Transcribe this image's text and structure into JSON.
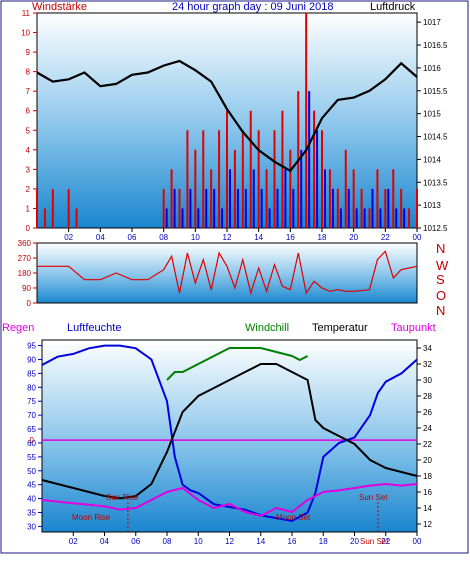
{
  "header": {
    "left_label": "Windstärke",
    "title": "24 hour graph day : 09 Juni 2018",
    "right_label": "Luftdruck"
  },
  "colors": {
    "wind": "#e00000",
    "gust": "#0000e0",
    "pressure": "#000000",
    "winddir": "#e00000",
    "humidity": "#0000e0",
    "windchill": "#008000",
    "temperature": "#000000",
    "dewpoint": "#e000e0",
    "marker": "#c00000",
    "label_red": "#c00000",
    "label_blue": "#0000c0",
    "label_green": "#008000"
  },
  "middle": {
    "direction_labels": [
      "N",
      "W",
      "S",
      "O",
      "N"
    ]
  },
  "bottom_header": {
    "regen": "Regen",
    "luftfeuchte": "Luftfeuchte",
    "windchill": "Windchill",
    "temperatur": "Temperatur",
    "taupunkt": "Taupunkt"
  },
  "events": {
    "sun_rise": "Sun Rise",
    "moon_rise": "Moon Rise",
    "moon_set": "Moon Set",
    "sun_set": "Sun Set",
    "sun_set_short": "Sun Set"
  },
  "chart_data": [
    {
      "type": "line",
      "title": "24 hour graph day : 09 Juni 2018",
      "x_tick_labels": [
        "02",
        "04",
        "06",
        "08",
        "10",
        "12",
        "14",
        "16",
        "18",
        "20",
        "22",
        "00"
      ],
      "xlim_hours": [
        0,
        24
      ],
      "left_axis": {
        "label": "Windstärke",
        "ticks": [
          0,
          1,
          2,
          3,
          4,
          5,
          6,
          7,
          8,
          9,
          10,
          11
        ],
        "ylim": [
          0,
          11
        ]
      },
      "right_axis": {
        "label": "Luftdruck",
        "ticks": [
          1012.5,
          1013,
          1013.5,
          1014,
          1014.5,
          1015,
          1015.5,
          1016,
          1016.5,
          1017
        ],
        "ylim": [
          1012.5,
          1017.2
        ]
      },
      "series": [
        {
          "name": "Luftdruck",
          "axis": "right",
          "x": [
            0,
            1,
            2,
            3,
            4,
            5,
            6,
            7,
            8,
            9,
            10,
            11,
            12,
            13,
            14,
            15,
            16,
            17,
            18,
            19,
            20,
            21,
            22,
            23,
            24
          ],
          "y": [
            1015.9,
            1015.7,
            1015.75,
            1015.9,
            1015.6,
            1015.65,
            1015.85,
            1015.9,
            1016.05,
            1016.15,
            1015.95,
            1015.7,
            1015.1,
            1014.6,
            1014.2,
            1013.95,
            1013.75,
            1014.2,
            1014.9,
            1015.3,
            1015.35,
            1015.5,
            1015.75,
            1016.1,
            1015.8
          ]
        },
        {
          "name": "Wind",
          "axis": "left",
          "x": [
            0,
            0.5,
            1,
            1.5,
            2,
            2.5,
            3,
            7.5,
            8,
            8.5,
            9,
            9.5,
            10,
            10.5,
            11,
            11.5,
            12,
            12.5,
            13,
            13.5,
            14,
            14.5,
            15,
            15.5,
            16,
            16.5,
            17,
            17.5,
            18,
            18.5,
            19,
            19.5,
            20,
            20.5,
            21,
            21.5,
            22,
            22.5,
            23,
            23.5,
            24
          ],
          "y": [
            2,
            1,
            2,
            0,
            2,
            1,
            0,
            0,
            2,
            3,
            2,
            5,
            4,
            5,
            3,
            5,
            6,
            4,
            5,
            6,
            5,
            3,
            5,
            6,
            4,
            7,
            11,
            6,
            5,
            3,
            2,
            4,
            3,
            2,
            1,
            3,
            2,
            3,
            2,
            1,
            2
          ]
        },
        {
          "name": "Böen",
          "axis": "left",
          "x": [
            8,
            8.5,
            9,
            9.5,
            10,
            10.5,
            11,
            11.5,
            12,
            12.5,
            13,
            13.5,
            14,
            14.5,
            15,
            15.5,
            16,
            16.5,
            17,
            17.5,
            18,
            18.5,
            19,
            19.5,
            20,
            20.5,
            21,
            21.5,
            22,
            22.5,
            23
          ],
          "y": [
            1,
            2,
            1,
            2,
            1,
            2,
            2,
            1,
            3,
            2,
            2,
            3,
            2,
            1,
            2,
            3,
            2,
            4,
            7,
            5,
            3,
            2,
            1,
            2,
            1,
            1,
            2,
            1,
            2,
            1,
            1
          ]
        }
      ]
    },
    {
      "type": "line",
      "left_axis": {
        "ticks": [
          0,
          90,
          180,
          270,
          360
        ],
        "ylim": [
          0,
          360
        ]
      },
      "right_labels": [
        "N",
        "W",
        "S",
        "O",
        "N"
      ],
      "series": [
        {
          "name": "Windrichtung",
          "x": [
            0,
            1,
            2,
            3,
            4,
            5,
            6,
            7,
            8,
            8.5,
            9,
            9.5,
            10,
            10.5,
            11,
            11.5,
            12,
            12.5,
            13,
            13.5,
            14,
            14.5,
            15,
            15.5,
            16,
            16.5,
            17,
            17.5,
            18,
            18.5,
            19,
            19.5,
            20,
            21,
            21.5,
            22,
            22.5,
            23,
            23.5,
            24
          ],
          "y": [
            220,
            220,
            220,
            140,
            140,
            180,
            140,
            140,
            200,
            280,
            60,
            300,
            120,
            260,
            80,
            300,
            220,
            90,
            260,
            60,
            210,
            70,
            230,
            100,
            80,
            300,
            60,
            130,
            90,
            70,
            80,
            70,
            70,
            80,
            260,
            310,
            150,
            200,
            210,
            220
          ]
        }
      ]
    },
    {
      "type": "line",
      "left_axis": {
        "ticks": [
          30,
          35,
          40,
          45,
          50,
          55,
          60,
          65,
          70,
          75,
          80,
          85,
          90,
          95
        ],
        "ylim": [
          28,
          97
        ]
      },
      "right_axis": {
        "ticks": [
          12,
          14,
          16,
          18,
          20,
          22,
          24,
          26,
          28,
          30,
          32,
          34
        ],
        "ylim": [
          11,
          35
        ]
      },
      "x_tick_labels": [
        "02",
        "04",
        "06",
        "08",
        "10",
        "12",
        "14",
        "16",
        "18",
        "20",
        "22",
        "00"
      ],
      "series": [
        {
          "name": "Luftfeuchte",
          "axis": "left",
          "x": [
            0,
            1,
            2,
            3,
            4,
            5,
            6,
            7,
            8,
            8.5,
            9,
            9.5,
            10,
            11,
            12,
            13,
            14,
            15,
            16,
            17,
            17.5,
            18,
            19,
            20,
            21,
            21.5,
            22,
            23,
            24
          ],
          "y": [
            88,
            91,
            92,
            94,
            95,
            95,
            94,
            90,
            75,
            55,
            45,
            43,
            42,
            38,
            37,
            36,
            34,
            33,
            32,
            35,
            42,
            55,
            60,
            62,
            70,
            78,
            82,
            85,
            90
          ]
        },
        {
          "name": "Temperatur",
          "axis": "right",
          "x": [
            0,
            1,
            2,
            3,
            4,
            5,
            6,
            7,
            8,
            9,
            10,
            11,
            12,
            13,
            14,
            15,
            16,
            17,
            17.5,
            18,
            19,
            20,
            21,
            22,
            23,
            24
          ],
          "y": [
            17.5,
            17,
            16.5,
            16,
            15.5,
            15.2,
            15.5,
            17,
            21,
            26,
            28,
            29,
            30,
            31,
            32,
            32,
            31,
            30,
            25,
            24,
            23,
            22,
            20,
            19,
            18.5,
            18
          ]
        },
        {
          "name": "Windchill",
          "axis": "right",
          "x": [
            8,
            8.5,
            9,
            10,
            11,
            12,
            13,
            14,
            15,
            16,
            16.5,
            17
          ],
          "y": [
            30,
            31,
            31,
            32,
            33,
            34,
            34,
            34,
            33.5,
            33,
            32.5,
            33
          ]
        },
        {
          "name": "Taupunkt",
          "axis": "right",
          "x": [
            0,
            1,
            2,
            3,
            4,
            5,
            6,
            7,
            8,
            9,
            10,
            11,
            12,
            13,
            14,
            15,
            16,
            17,
            18,
            19,
            20,
            21,
            22,
            23,
            24
          ],
          "y": [
            15,
            14.8,
            14.6,
            14.4,
            14.2,
            13.8,
            14,
            15,
            16,
            16.5,
            15,
            14,
            14.5,
            13.5,
            13,
            14,
            13.5,
            15,
            16,
            16.2,
            16.5,
            16.8,
            17,
            16.8,
            17
          ]
        }
      ],
      "zero_line": {
        "label": "0",
        "value": 61
      },
      "events": {
        "sun_rise_hour": 5.5,
        "moon_rise_hour": 4,
        "moon_set_hour": 16,
        "sun_set_hour": 21.5
      }
    }
  ]
}
